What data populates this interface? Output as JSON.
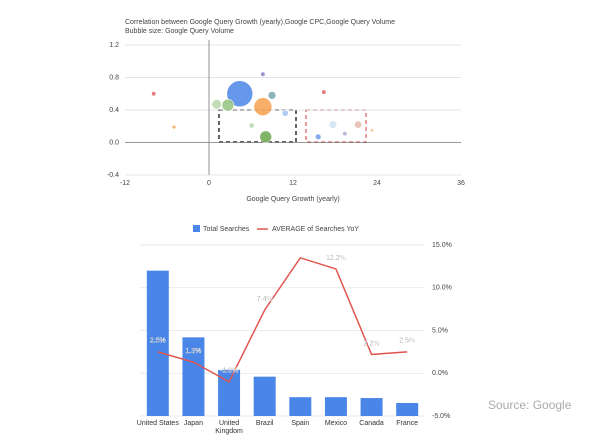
{
  "chart_data": [
    {
      "type": "bubble",
      "title": "Correlation between Google Query Growth (yearly),Google CPC,Google Query Volume",
      "subtitle": "Bubble size: Google Query Volume",
      "x_label": "Google Query Growth (yearly)",
      "x": [
        4.4,
        7.7,
        8.1,
        2.7,
        1.1,
        -7.9,
        7.7,
        -5,
        9,
        10.9,
        17.7,
        21.3,
        16.4,
        15.6,
        19.4,
        23.3,
        6.1
      ],
      "y": [
        0.6,
        0.44,
        0.07,
        0.46,
        0.47,
        0.6,
        0.84,
        0.19,
        0.58,
        0.36,
        0.22,
        0.22,
        0.62,
        0.07,
        0.11,
        0.15,
        0.21
      ],
      "size": [
        100,
        48,
        21,
        21,
        14,
        3,
        3,
        2,
        9,
        6,
        9,
        8,
        3,
        5,
        3,
        2,
        4
      ],
      "colors": [
        "#4a86e8",
        "#f6a04d",
        "#6aa84f",
        "#93c47d",
        "#b6d7a8",
        "#e06666",
        "#8e7cc3",
        "#f6a04d",
        "#76a5af",
        "#a4c2f4",
        "#cfe2f3",
        "#e6b8af",
        "#e06666",
        "#6d9eeb",
        "#b4a7d6",
        "#f9cb9c",
        "#b6d7a8"
      ],
      "xlim": [
        -12,
        36
      ],
      "xticks": [
        -12,
        0,
        12,
        24,
        36
      ],
      "ylim": [
        -0.4,
        1.2
      ],
      "yticks": [
        -0.4,
        {
          "value": 0,
          "label": "0.0"
        },
        0.4,
        0.8,
        1.2
      ],
      "grid": true
    },
    {
      "type": "bar",
      "categories": [
        "United States",
        "Japan",
        "United Kingdom",
        "Brazil",
        "Spain",
        "Mexico",
        "Canada",
        "France"
      ],
      "series": [
        {
          "name": "Total Searches",
          "type": "bar",
          "color": "#4a86e8",
          "values": [
            85,
            46,
            27,
            23,
            11,
            11,
            10.5,
            7.6
          ]
        },
        {
          "name": "AVERAGE of Searches YoY",
          "type": "line",
          "axis": "y2",
          "color": "#e0564f",
          "values": [
            2.5,
            1.3,
            -1.0,
            7.4,
            13.5,
            12.2,
            2.2,
            2.5
          ],
          "value_labels": [
            "2.5%",
            "1.3%",
            "-1.0%",
            "7.4%",
            null,
            "12.2%",
            "2.2%",
            "2.5%"
          ]
        }
      ],
      "ylim": [
        0,
        100
      ],
      "y2lim": [
        -5,
        15
      ],
      "y2ticks": [
        {
          "value": -5,
          "label": "-5.0%"
        },
        {
          "value": 0,
          "label": "0.0%"
        },
        {
          "value": 5,
          "label": "5.0%"
        },
        {
          "value": 10,
          "label": "10.0%"
        },
        {
          "value": 15,
          "label": "15.0%"
        }
      ],
      "grid": true
    }
  ],
  "source": "Source: Google"
}
